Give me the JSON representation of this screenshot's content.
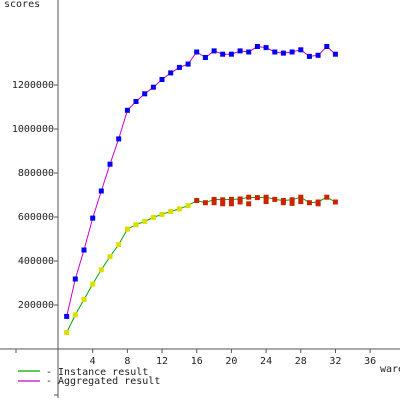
{
  "chart_data": {
    "type": "line",
    "ylabel": "scores",
    "xlabel": "wareh",
    "xlim": [
      -4,
      40
    ],
    "ylim": [
      -200000,
      1550000
    ],
    "x_ticks": [
      4,
      8,
      12,
      16,
      20,
      24,
      28,
      32,
      36
    ],
    "y_ticks": [
      200000,
      400000,
      600000,
      800000,
      1000000,
      1200000
    ],
    "grid": false,
    "legend_position": "bottom-left",
    "series": [
      {
        "name": "Instance result",
        "color": "#00aa00",
        "point_colors": [
          "#dddd00",
          "#cc2200"
        ],
        "x": [
          1,
          2,
          3,
          4,
          5,
          6,
          7,
          8,
          9,
          10,
          11,
          12,
          13,
          14,
          15,
          16,
          17,
          18,
          18,
          19,
          19,
          20,
          20,
          21,
          21,
          22,
          22,
          23,
          24,
          24,
          25,
          26,
          26,
          27,
          27,
          28,
          28,
          29,
          30,
          30,
          31,
          32
        ],
        "y": [
          75000,
          155000,
          225000,
          295000,
          360000,
          420000,
          475000,
          545000,
          565000,
          580000,
          598000,
          612000,
          625000,
          637000,
          652000,
          675000,
          665000,
          680000,
          665000,
          678000,
          660000,
          680000,
          660000,
          682000,
          668000,
          690000,
          660000,
          688000,
          690000,
          670000,
          680000,
          675000,
          665000,
          678000,
          662000,
          690000,
          670000,
          665000,
          668000,
          660000,
          690000,
          668000
        ]
      },
      {
        "name": "Aggregated result",
        "color": "#cc00cc",
        "point_colors": [
          "#0000ee"
        ],
        "x": [
          1,
          2,
          3,
          4,
          5,
          6,
          7,
          8,
          9,
          10,
          11,
          12,
          13,
          14,
          15,
          16,
          17,
          18,
          19,
          20,
          21,
          22,
          23,
          24,
          25,
          26,
          27,
          28,
          29,
          30,
          31,
          32
        ],
        "y": [
          148000,
          318000,
          450000,
          595000,
          718000,
          840000,
          955000,
          1085000,
          1125000,
          1160000,
          1190000,
          1225000,
          1255000,
          1280000,
          1295000,
          1350000,
          1325000,
          1355000,
          1340000,
          1340000,
          1355000,
          1350000,
          1375000,
          1370000,
          1350000,
          1345000,
          1350000,
          1360000,
          1330000,
          1335000,
          1375000,
          1340000
        ]
      }
    ]
  }
}
